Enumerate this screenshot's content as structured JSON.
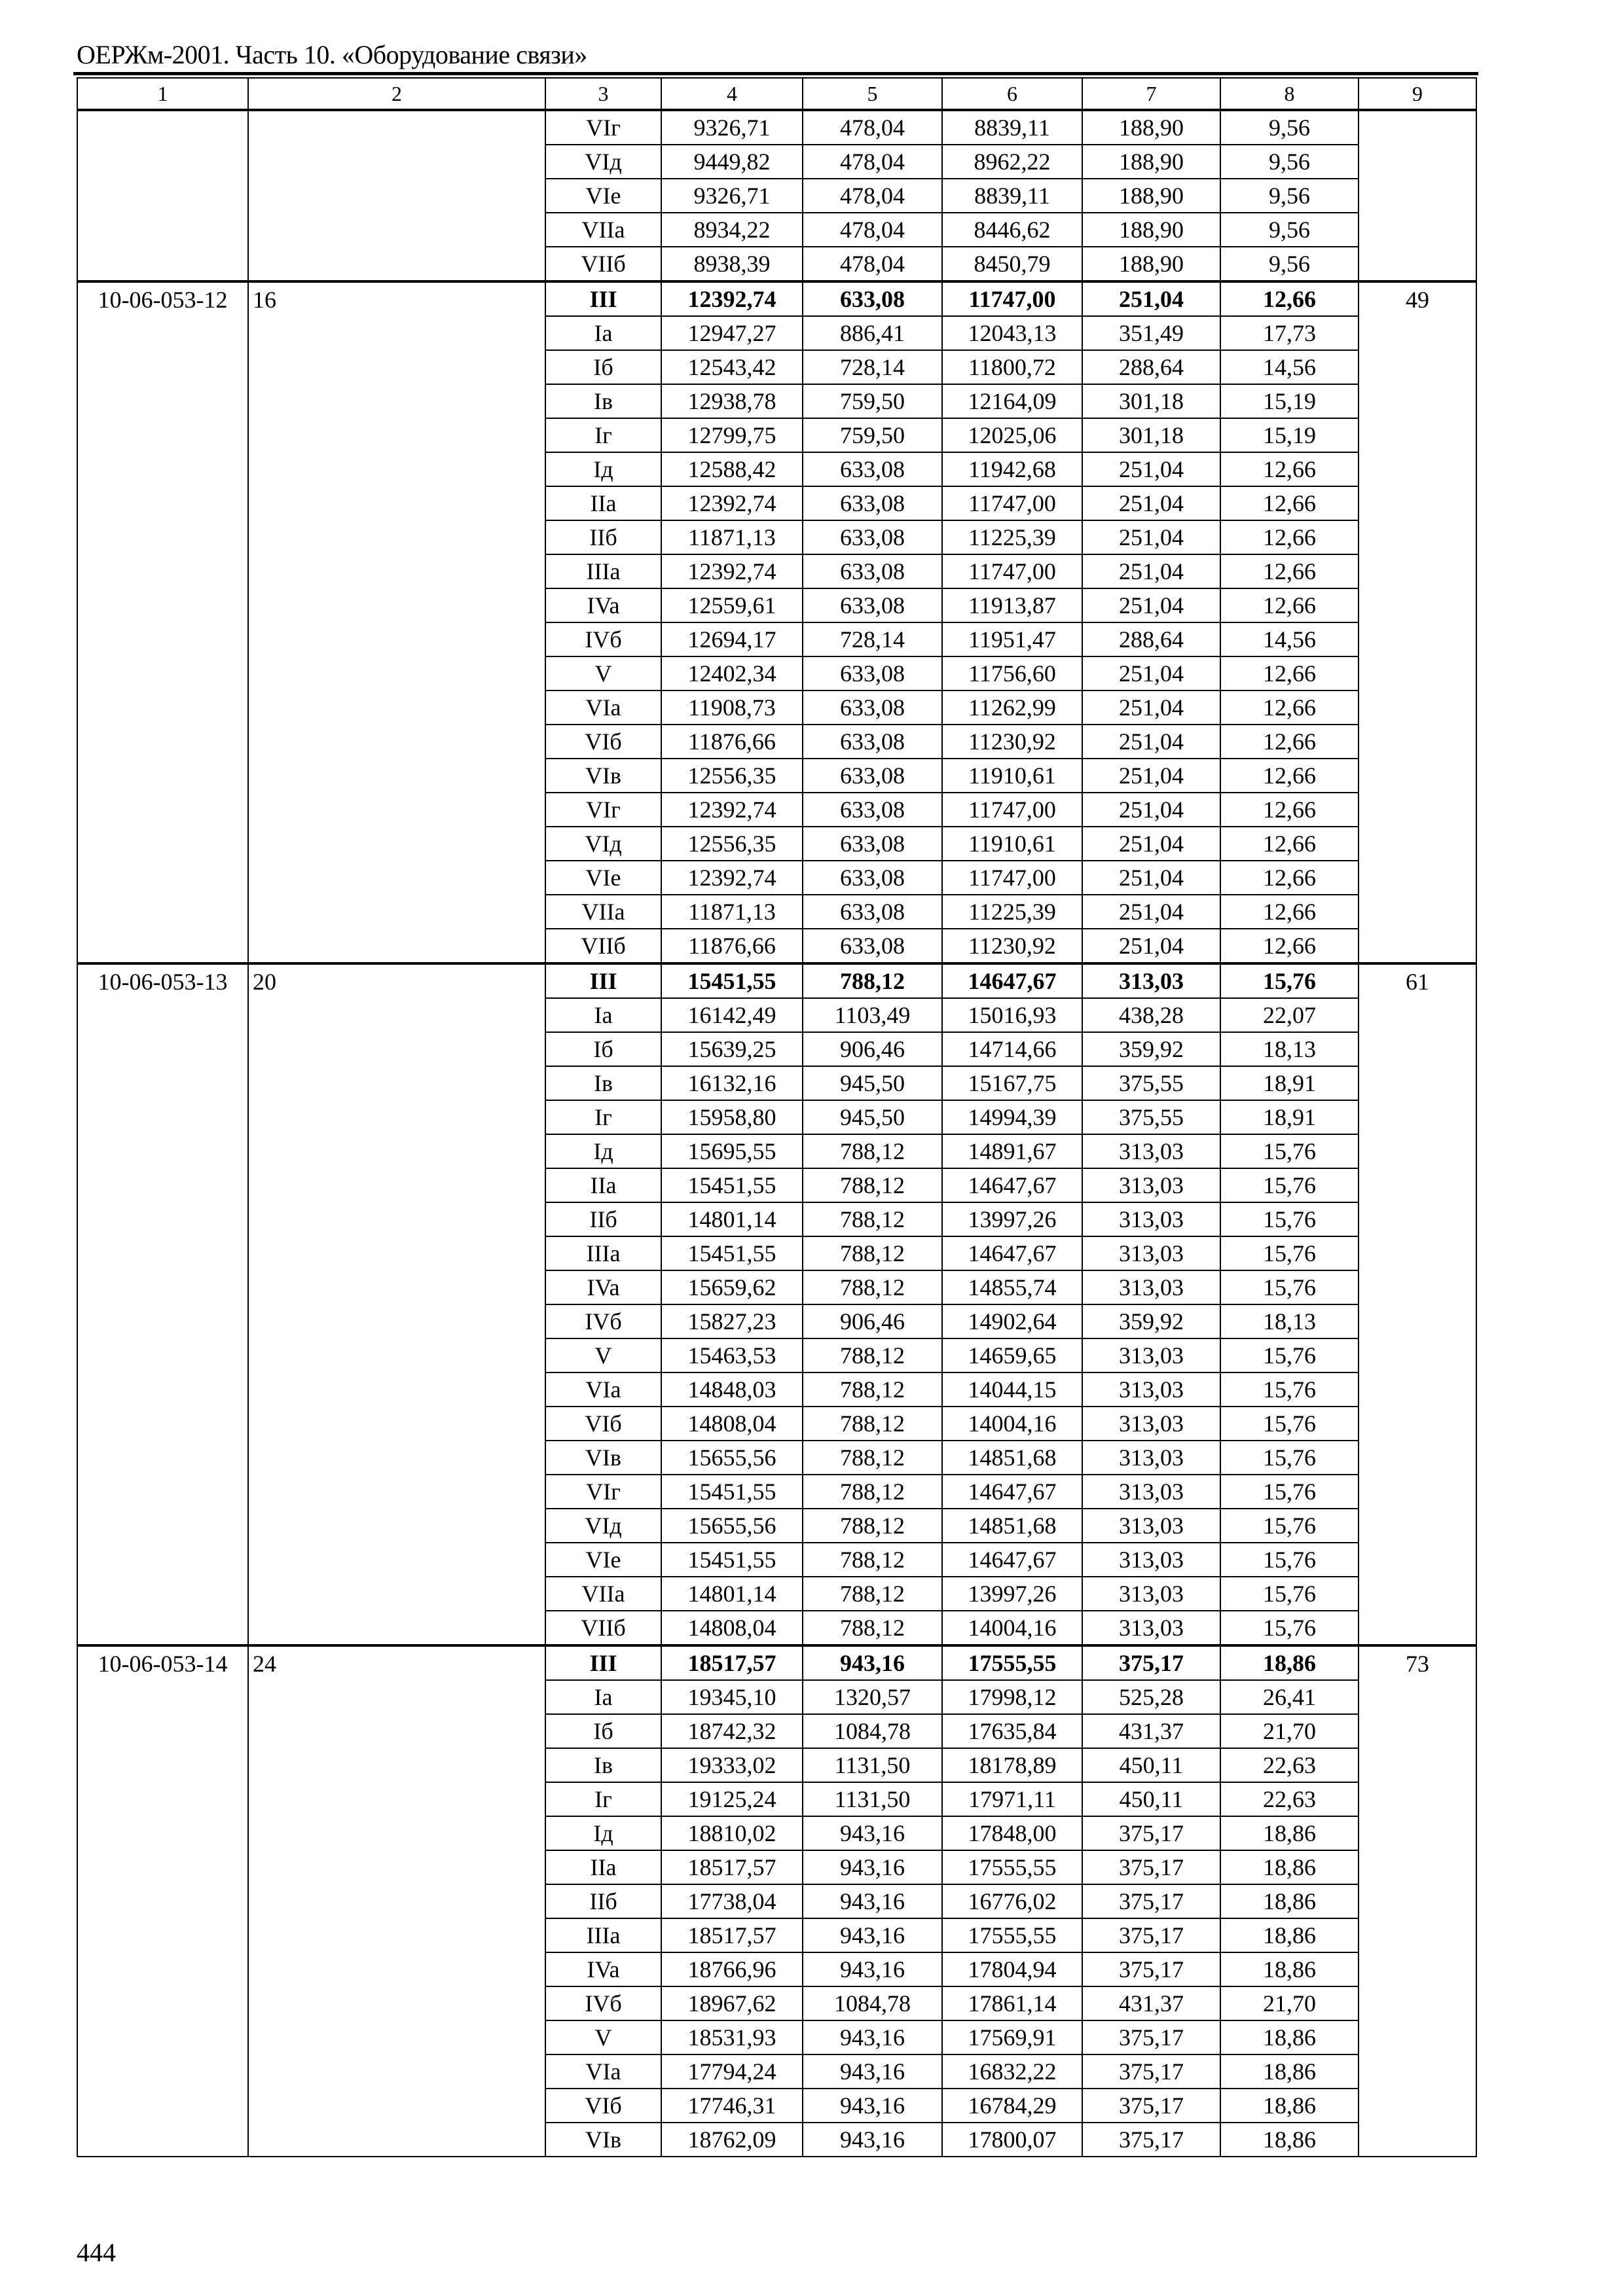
{
  "header": {
    "title": "ОЕРЖм-2001. Часть 10. «Оборудование связи»"
  },
  "page_number": "444",
  "table": {
    "columns": [
      "1",
      "2",
      "3",
      "4",
      "5",
      "6",
      "7",
      "8",
      "9"
    ],
    "blocks": [
      {
        "code": "",
        "col2": "",
        "col9": "",
        "rows": [
          [
            "VIг",
            "9326,71",
            "478,04",
            "8839,11",
            "188,90",
            "9,56"
          ],
          [
            "VIд",
            "9449,82",
            "478,04",
            "8962,22",
            "188,90",
            "9,56"
          ],
          [
            "VIe",
            "9326,71",
            "478,04",
            "8839,11",
            "188,90",
            "9,56"
          ],
          [
            "VIIa",
            "8934,22",
            "478,04",
            "8446,62",
            "188,90",
            "9,56"
          ],
          [
            "VIIб",
            "8938,39",
            "478,04",
            "8450,79",
            "188,90",
            "9,56"
          ]
        ],
        "bold_first": false
      },
      {
        "code": "10-06-053-12",
        "col2": "16",
        "col9": "49",
        "bold_first": true,
        "rows": [
          [
            "III",
            "12392,74",
            "633,08",
            "11747,00",
            "251,04",
            "12,66"
          ],
          [
            "Ia",
            "12947,27",
            "886,41",
            "12043,13",
            "351,49",
            "17,73"
          ],
          [
            "Iб",
            "12543,42",
            "728,14",
            "11800,72",
            "288,64",
            "14,56"
          ],
          [
            "Iв",
            "12938,78",
            "759,50",
            "12164,09",
            "301,18",
            "15,19"
          ],
          [
            "Iг",
            "12799,75",
            "759,50",
            "12025,06",
            "301,18",
            "15,19"
          ],
          [
            "Iд",
            "12588,42",
            "633,08",
            "11942,68",
            "251,04",
            "12,66"
          ],
          [
            "IIa",
            "12392,74",
            "633,08",
            "11747,00",
            "251,04",
            "12,66"
          ],
          [
            "IIб",
            "11871,13",
            "633,08",
            "11225,39",
            "251,04",
            "12,66"
          ],
          [
            "IIIa",
            "12392,74",
            "633,08",
            "11747,00",
            "251,04",
            "12,66"
          ],
          [
            "IVa",
            "12559,61",
            "633,08",
            "11913,87",
            "251,04",
            "12,66"
          ],
          [
            "IVб",
            "12694,17",
            "728,14",
            "11951,47",
            "288,64",
            "14,56"
          ],
          [
            "V",
            "12402,34",
            "633,08",
            "11756,60",
            "251,04",
            "12,66"
          ],
          [
            "VIa",
            "11908,73",
            "633,08",
            "11262,99",
            "251,04",
            "12,66"
          ],
          [
            "VIб",
            "11876,66",
            "633,08",
            "11230,92",
            "251,04",
            "12,66"
          ],
          [
            "VIв",
            "12556,35",
            "633,08",
            "11910,61",
            "251,04",
            "12,66"
          ],
          [
            "VIг",
            "12392,74",
            "633,08",
            "11747,00",
            "251,04",
            "12,66"
          ],
          [
            "VIд",
            "12556,35",
            "633,08",
            "11910,61",
            "251,04",
            "12,66"
          ],
          [
            "VIe",
            "12392,74",
            "633,08",
            "11747,00",
            "251,04",
            "12,66"
          ],
          [
            "VIIa",
            "11871,13",
            "633,08",
            "11225,39",
            "251,04",
            "12,66"
          ],
          [
            "VIIб",
            "11876,66",
            "633,08",
            "11230,92",
            "251,04",
            "12,66"
          ]
        ]
      },
      {
        "code": "10-06-053-13",
        "col2": "20",
        "col9": "61",
        "bold_first": true,
        "rows": [
          [
            "III",
            "15451,55",
            "788,12",
            "14647,67",
            "313,03",
            "15,76"
          ],
          [
            "Ia",
            "16142,49",
            "1103,49",
            "15016,93",
            "438,28",
            "22,07"
          ],
          [
            "Iб",
            "15639,25",
            "906,46",
            "14714,66",
            "359,92",
            "18,13"
          ],
          [
            "Iв",
            "16132,16",
            "945,50",
            "15167,75",
            "375,55",
            "18,91"
          ],
          [
            "Iг",
            "15958,80",
            "945,50",
            "14994,39",
            "375,55",
            "18,91"
          ],
          [
            "Iд",
            "15695,55",
            "788,12",
            "14891,67",
            "313,03",
            "15,76"
          ],
          [
            "IIa",
            "15451,55",
            "788,12",
            "14647,67",
            "313,03",
            "15,76"
          ],
          [
            "IIб",
            "14801,14",
            "788,12",
            "13997,26",
            "313,03",
            "15,76"
          ],
          [
            "IIIa",
            "15451,55",
            "788,12",
            "14647,67",
            "313,03",
            "15,76"
          ],
          [
            "IVa",
            "15659,62",
            "788,12",
            "14855,74",
            "313,03",
            "15,76"
          ],
          [
            "IVб",
            "15827,23",
            "906,46",
            "14902,64",
            "359,92",
            "18,13"
          ],
          [
            "V",
            "15463,53",
            "788,12",
            "14659,65",
            "313,03",
            "15,76"
          ],
          [
            "VIa",
            "14848,03",
            "788,12",
            "14044,15",
            "313,03",
            "15,76"
          ],
          [
            "VIб",
            "14808,04",
            "788,12",
            "14004,16",
            "313,03",
            "15,76"
          ],
          [
            "VIв",
            "15655,56",
            "788,12",
            "14851,68",
            "313,03",
            "15,76"
          ],
          [
            "VIг",
            "15451,55",
            "788,12",
            "14647,67",
            "313,03",
            "15,76"
          ],
          [
            "VIд",
            "15655,56",
            "788,12",
            "14851,68",
            "313,03",
            "15,76"
          ],
          [
            "VIe",
            "15451,55",
            "788,12",
            "14647,67",
            "313,03",
            "15,76"
          ],
          [
            "VIIa",
            "14801,14",
            "788,12",
            "13997,26",
            "313,03",
            "15,76"
          ],
          [
            "VIIб",
            "14808,04",
            "788,12",
            "14004,16",
            "313,03",
            "15,76"
          ]
        ]
      },
      {
        "code": "10-06-053-14",
        "col2": "24",
        "col9": "73",
        "bold_first": true,
        "rows": [
          [
            "III",
            "18517,57",
            "943,16",
            "17555,55",
            "375,17",
            "18,86"
          ],
          [
            "Ia",
            "19345,10",
            "1320,57",
            "17998,12",
            "525,28",
            "26,41"
          ],
          [
            "Iб",
            "18742,32",
            "1084,78",
            "17635,84",
            "431,37",
            "21,70"
          ],
          [
            "Iв",
            "19333,02",
            "1131,50",
            "18178,89",
            "450,11",
            "22,63"
          ],
          [
            "Iг",
            "19125,24",
            "1131,50",
            "17971,11",
            "450,11",
            "22,63"
          ],
          [
            "Iд",
            "18810,02",
            "943,16",
            "17848,00",
            "375,17",
            "18,86"
          ],
          [
            "IIa",
            "18517,57",
            "943,16",
            "17555,55",
            "375,17",
            "18,86"
          ],
          [
            "IIб",
            "17738,04",
            "943,16",
            "16776,02",
            "375,17",
            "18,86"
          ],
          [
            "IIIa",
            "18517,57",
            "943,16",
            "17555,55",
            "375,17",
            "18,86"
          ],
          [
            "IVa",
            "18766,96",
            "943,16",
            "17804,94",
            "375,17",
            "18,86"
          ],
          [
            "IVб",
            "18967,62",
            "1084,78",
            "17861,14",
            "431,37",
            "21,70"
          ],
          [
            "V",
            "18531,93",
            "943,16",
            "17569,91",
            "375,17",
            "18,86"
          ],
          [
            "VIa",
            "17794,24",
            "943,16",
            "16832,22",
            "375,17",
            "18,86"
          ],
          [
            "VIб",
            "17746,31",
            "943,16",
            "16784,29",
            "375,17",
            "18,86"
          ],
          [
            "VIв",
            "18762,09",
            "943,16",
            "17800,07",
            "375,17",
            "18,86"
          ]
        ]
      }
    ]
  }
}
